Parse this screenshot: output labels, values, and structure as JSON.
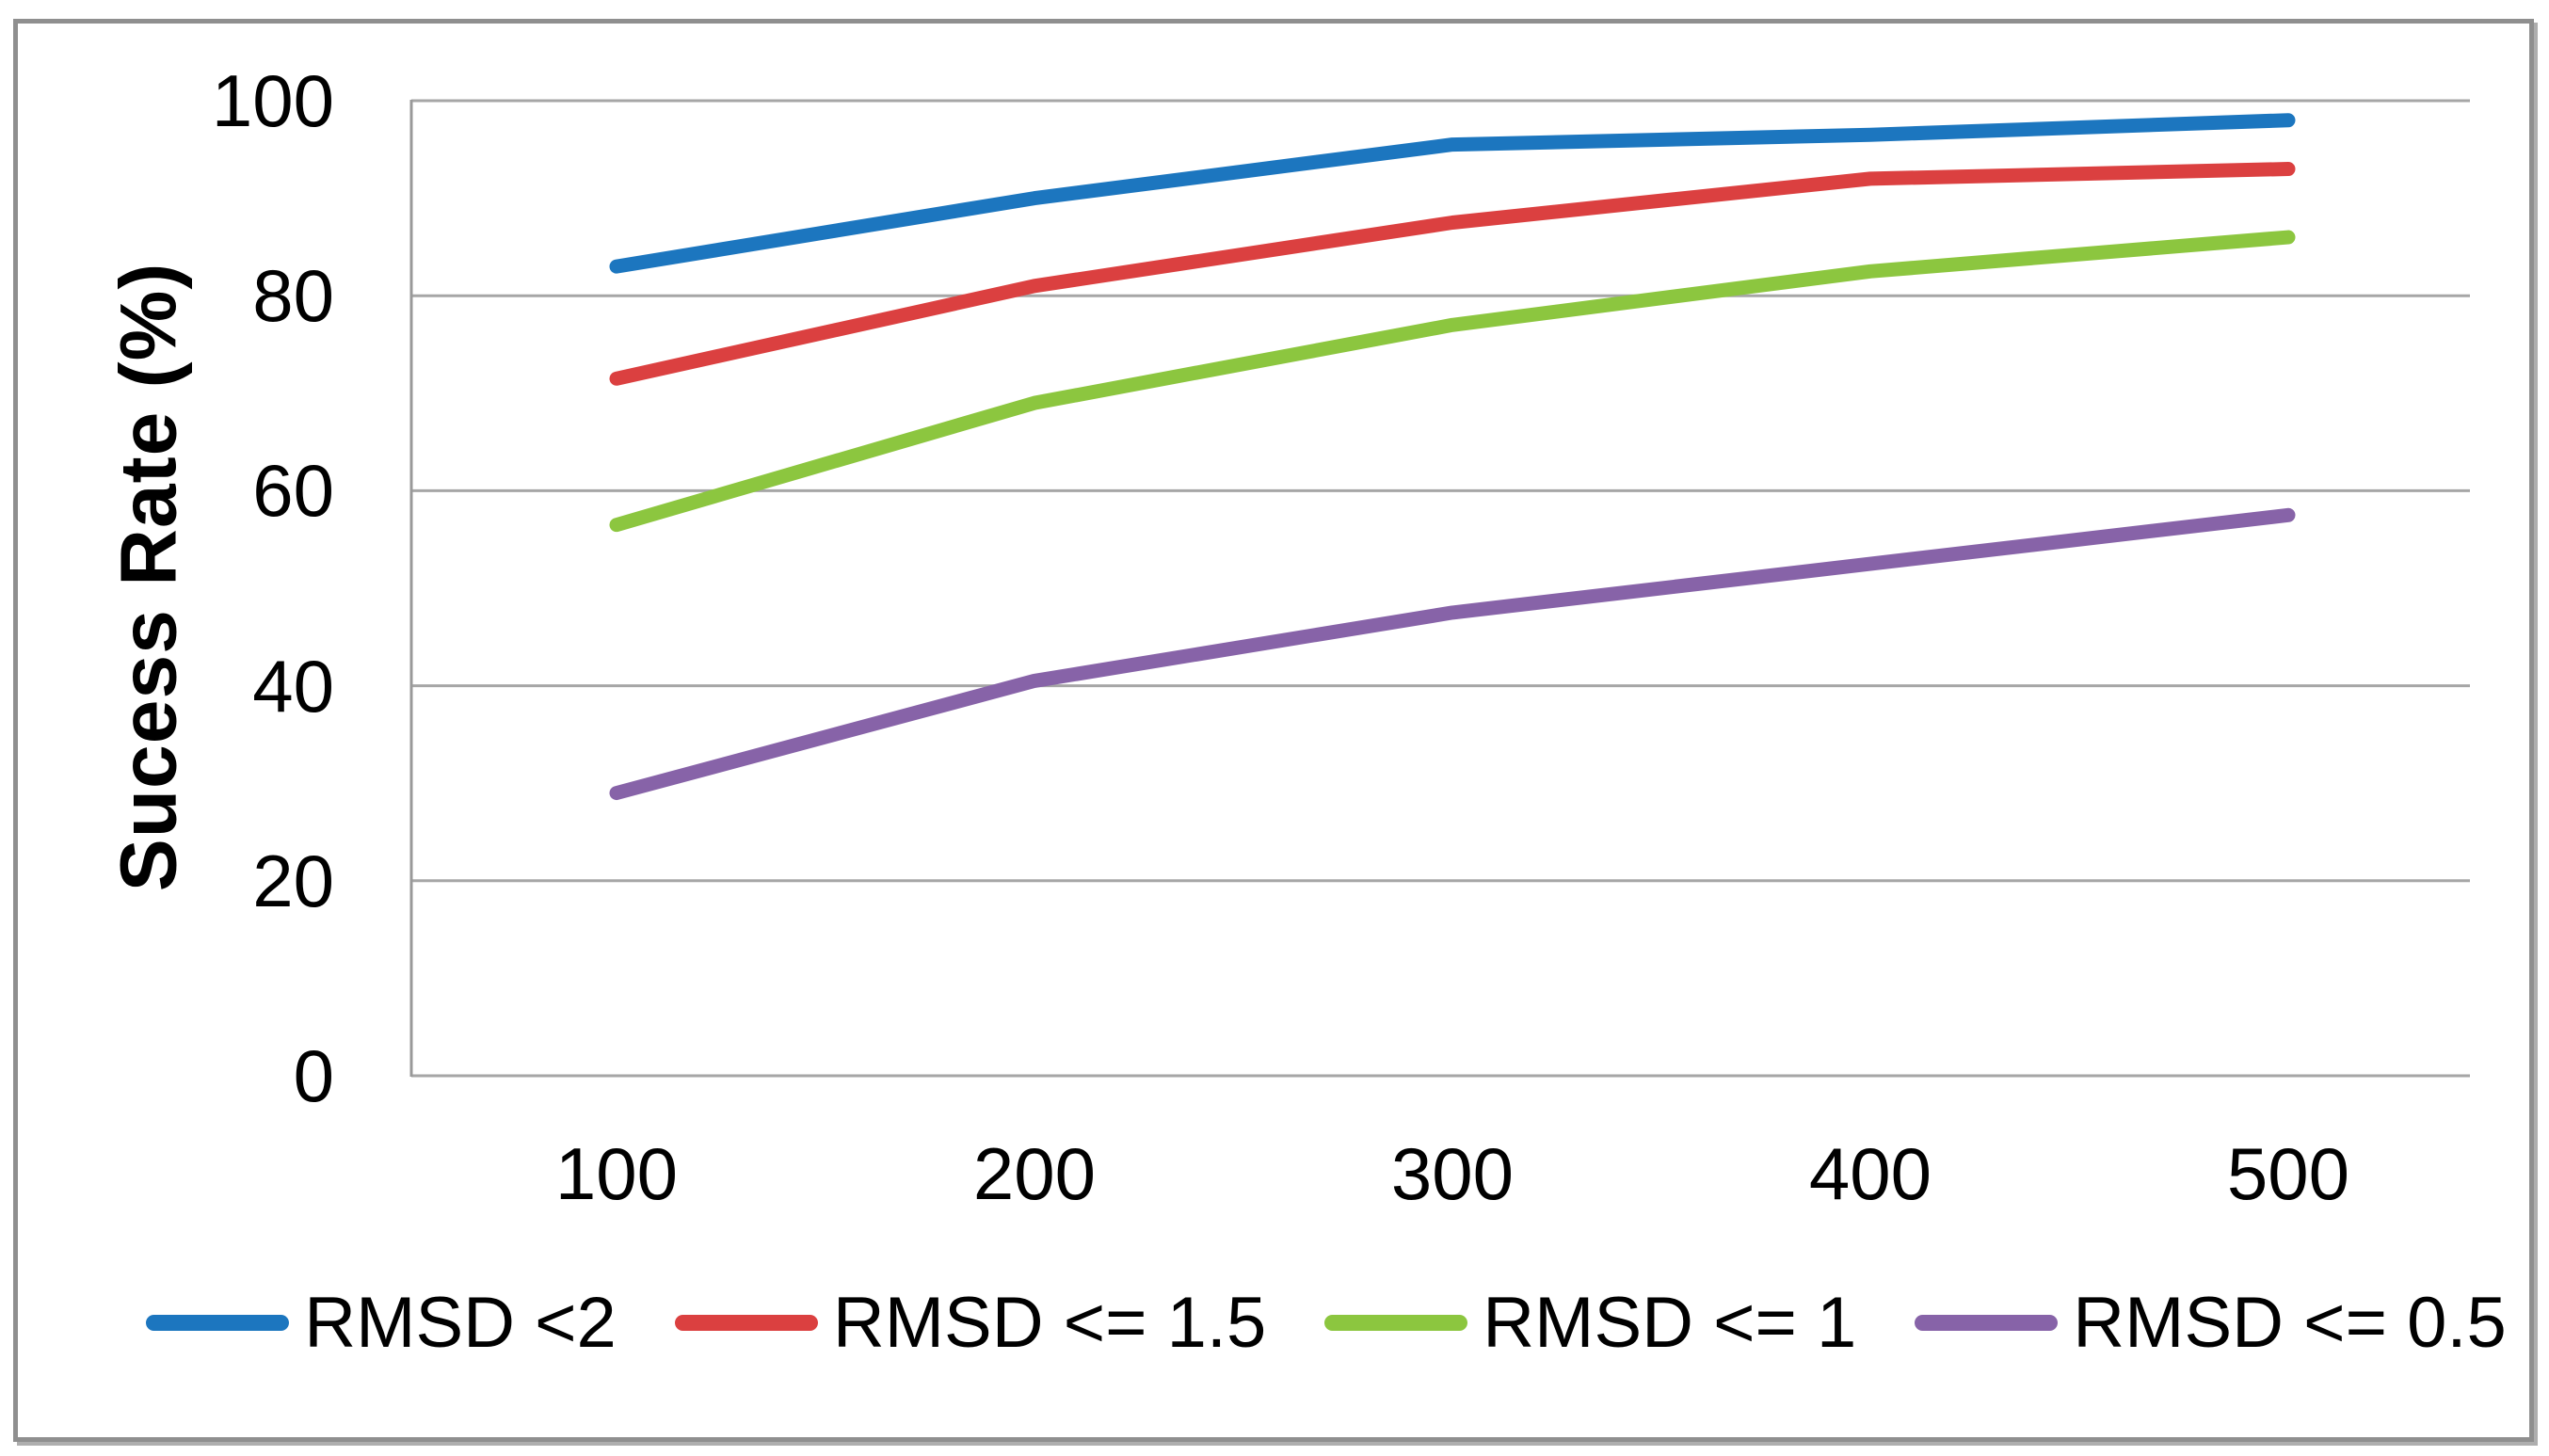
{
  "chart_data": {
    "type": "line",
    "title": "",
    "xlabel": "",
    "ylabel": "Sucess Rate (%)",
    "x": [
      100,
      200,
      300,
      400,
      500
    ],
    "x_tick_labels": [
      "100",
      "200",
      "300",
      "400",
      "500"
    ],
    "y_ticks": [
      0,
      20,
      40,
      60,
      80,
      100
    ],
    "y_tick_labels": [
      "0",
      "20",
      "40",
      "60",
      "80",
      "100"
    ],
    "ylim": [
      0,
      100
    ],
    "grid": "horizontal gridlines on",
    "legend_position": "bottom",
    "series": [
      {
        "name": "RMSD <2",
        "color": "#1C76BF",
        "values": [
          83,
          90,
          95.5,
          96.5,
          98
        ]
      },
      {
        "name": "RMSD <= 1.5",
        "color": "#DB4040",
        "values": [
          71.5,
          81,
          87.5,
          92,
          93
        ]
      },
      {
        "name": "RMSD <= 1",
        "color": "#8CC63F",
        "values": [
          56.5,
          69,
          77,
          82.5,
          86
        ]
      },
      {
        "name": "RMSD <= 0.5",
        "color": "#8763A8",
        "values": [
          29,
          40.5,
          47.5,
          52.5,
          57.5
        ]
      }
    ],
    "colors": {
      "gridline": "#A6A6A6",
      "axis": "#999999",
      "figure_border": "#8F8F8F",
      "text": "#000000"
    }
  }
}
